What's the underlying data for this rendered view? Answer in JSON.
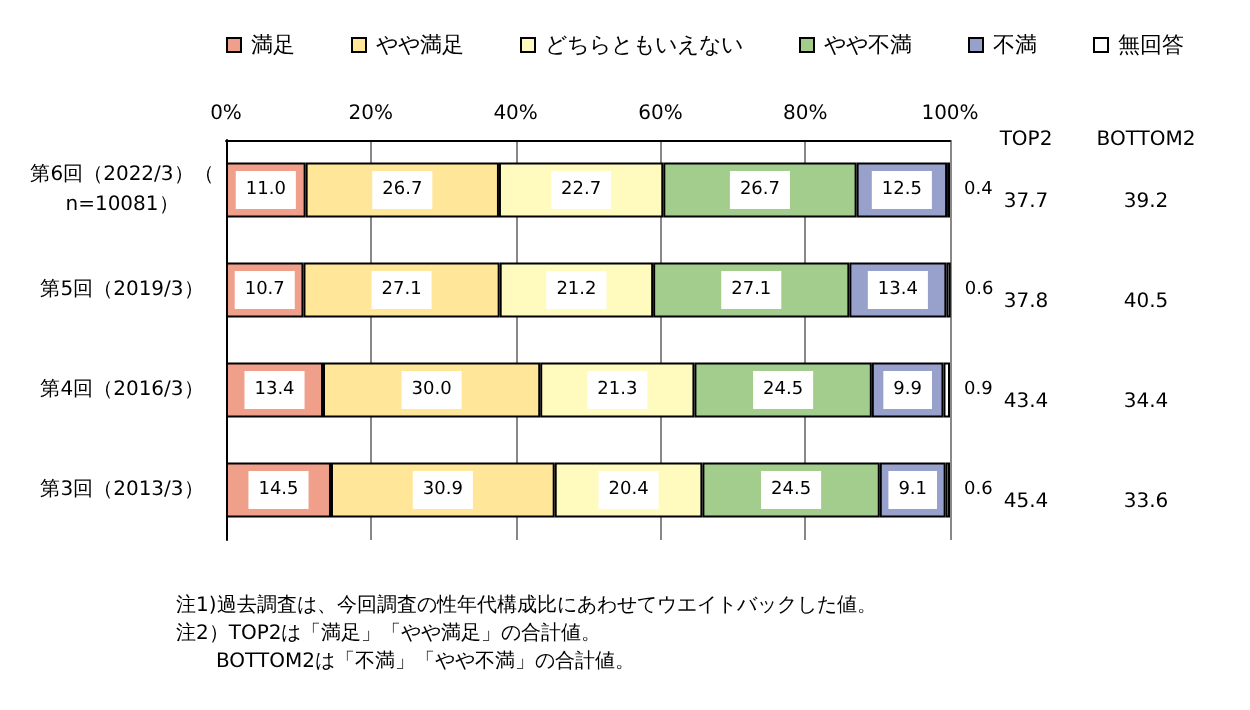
{
  "chart_data": {
    "type": "bar",
    "orientation": "horizontal",
    "stacked": true,
    "legend": "top",
    "grid": "x",
    "categories": [
      "第6回（2022/3）（n=10081）",
      "第5回（2019/3）",
      "第4回（2016/3）",
      "第3回（2013/3）"
    ],
    "xlim": [
      0,
      100
    ],
    "xticks": [
      {
        "value": 0,
        "label": "0%"
      },
      {
        "value": 20,
        "label": "20%"
      },
      {
        "value": 40,
        "label": "40%"
      },
      {
        "value": 60,
        "label": "60%"
      },
      {
        "value": 80,
        "label": "80%"
      },
      {
        "value": 100,
        "label": "100%"
      }
    ],
    "series": [
      {
        "name": "満足",
        "color": "#f0a08a",
        "values": [
          11.0,
          10.7,
          13.4,
          14.5
        ],
        "value_labels": [
          "11.0",
          "10.7",
          "13.4",
          "14.5"
        ]
      },
      {
        "name": "やや満足",
        "color": "#ffe699",
        "values": [
          26.7,
          27.1,
          30.0,
          30.9
        ],
        "value_labels": [
          "26.7",
          "27.1",
          "30.0",
          "30.9"
        ]
      },
      {
        "name": "どちらともいえない",
        "color": "#fffabe",
        "values": [
          22.7,
          21.2,
          21.3,
          20.4
        ],
        "value_labels": [
          "22.7",
          "21.2",
          "21.3",
          "20.4"
        ]
      },
      {
        "name": "やや不満",
        "color": "#a2cd8c",
        "values": [
          26.7,
          27.1,
          24.5,
          24.5
        ],
        "value_labels": [
          "26.7",
          "27.1",
          "24.5",
          "24.5"
        ]
      },
      {
        "name": "不満",
        "color": "#98a0cc",
        "values": [
          12.5,
          13.4,
          9.9,
          9.1
        ],
        "value_labels": [
          "12.5",
          "13.4",
          "9.9",
          "9.1"
        ]
      },
      {
        "name": "無回答",
        "color": "#ffffff",
        "values": [
          0.4,
          0.6,
          0.9,
          0.6
        ],
        "value_labels": [
          "0.4",
          "0.6",
          "0.9",
          "0.6"
        ]
      }
    ],
    "annotations": [
      "TOP2",
      "BOTTOM2",
      "37.7",
      "39.2",
      "37.8",
      "40.5",
      "43.4",
      "34.4",
      "45.4",
      "33.6",
      "注1)過去調査は、今回調査の性年代構成比にあわせてウエイトバックした値。",
      "注2）TOP2は「満足」「やや満足」の合計値。",
      "　　BOTTOM2は「不満」「やや不満」の合計値。"
    ]
  }
}
